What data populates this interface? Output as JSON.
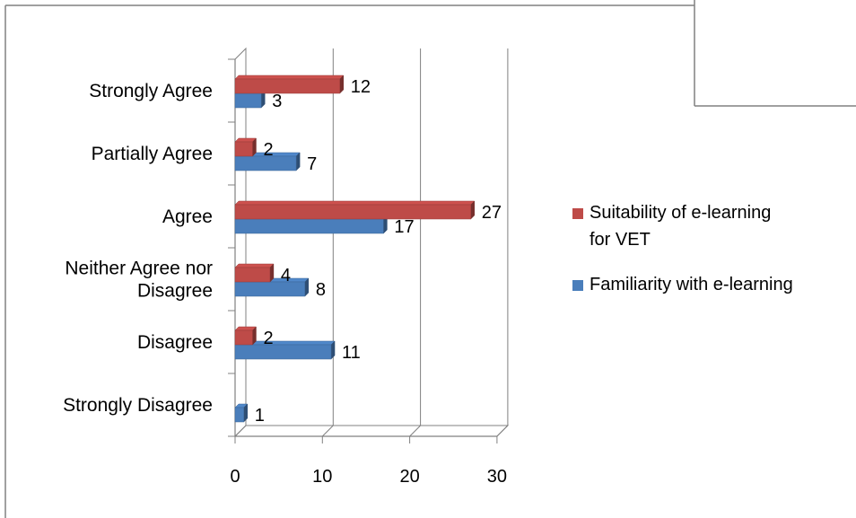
{
  "chart_data": {
    "type": "bar",
    "orientation": "horizontal",
    "style": "3d-clustered",
    "categories": [
      "Strongly Disagree",
      "Disagree",
      "Neither Agree nor Disagree",
      "Agree",
      "Partially Agree",
      "Strongly Agree"
    ],
    "category_lines": [
      [
        "Strongly Disagree"
      ],
      [
        "Disagree"
      ],
      [
        "Neither Agree nor",
        "Disagree"
      ],
      [
        "Agree"
      ],
      [
        "Partially Agree"
      ],
      [
        "Strongly Agree"
      ]
    ],
    "series": [
      {
        "name": "Familiarity with e-learning",
        "color": "#4a7ebb",
        "values": [
          1,
          11,
          8,
          17,
          7,
          3
        ]
      },
      {
        "name": "Suitability of e-learning for VET",
        "color": "#be4b48",
        "values": [
          0,
          2,
          4,
          27,
          2,
          12
        ]
      }
    ],
    "legend_order": [
      1,
      0
    ],
    "legend_lines": [
      [
        "Suitability of e-learning",
        "for VET"
      ],
      [
        "Familiarity with e-learning"
      ]
    ],
    "xlim": [
      0,
      30
    ],
    "xticks": [
      "0",
      "10",
      "20",
      "30"
    ],
    "grid": true,
    "legend_position": "right"
  }
}
